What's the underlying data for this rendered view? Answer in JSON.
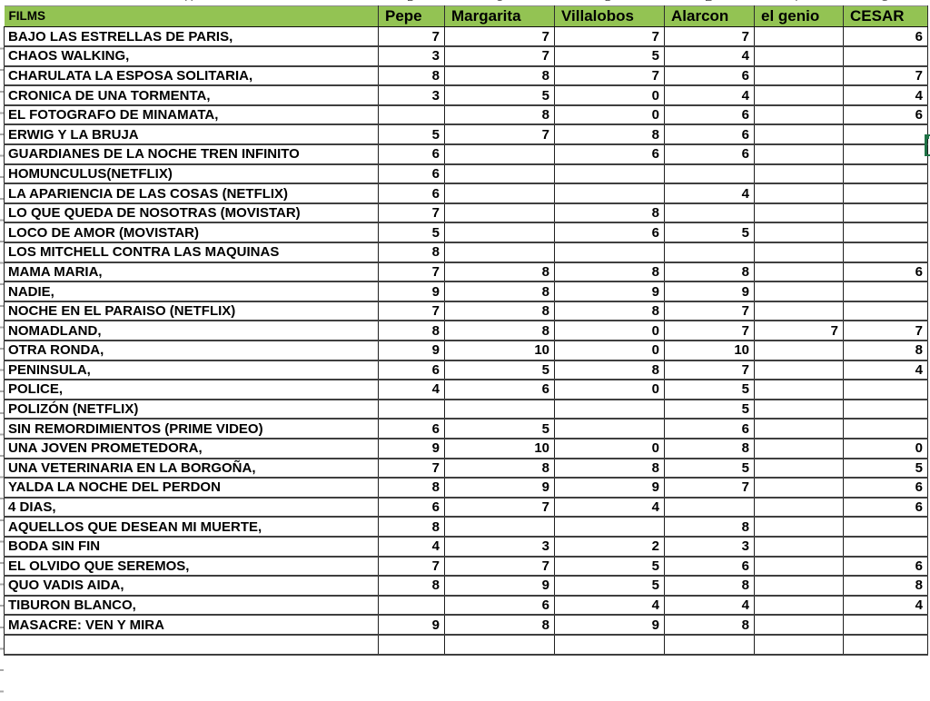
{
  "sheet": {
    "column_letters": [
      "A",
      "B",
      "C",
      "D",
      "E",
      "F",
      "G"
    ],
    "header": {
      "films": "FILMS",
      "raters": [
        "Pepe",
        "Margarita",
        "Villalobos",
        "Alarcon",
        "el genio",
        "CESAR"
      ]
    },
    "rows": [
      {
        "film": "BAJO LAS ESTRELLAS DE PARIS,",
        "scores": [
          "7",
          "7",
          "7",
          "7",
          "",
          "6"
        ]
      },
      {
        "film": "CHAOS WALKING,",
        "scores": [
          "3",
          "7",
          "5",
          "4",
          "",
          ""
        ]
      },
      {
        "film": "CHARULATA LA ESPOSA SOLITARIA,",
        "scores": [
          "8",
          "8",
          "7",
          "6",
          "",
          "7"
        ]
      },
      {
        "film": "CRONICA DE UNA TORMENTA,",
        "scores": [
          "3",
          "5",
          "0",
          "4",
          "",
          "4"
        ]
      },
      {
        "film": "EL FOTOGRAFO DE MINAMATA,",
        "scores": [
          "",
          "8",
          "0",
          "6",
          "",
          "6"
        ]
      },
      {
        "film": "ERWIG Y LA BRUJA",
        "scores": [
          "5",
          "7",
          "8",
          "6",
          "",
          ""
        ]
      },
      {
        "film": "GUARDIANES DE LA NOCHE TREN INFINITO",
        "scores": [
          "6",
          "",
          "6",
          "6",
          "",
          ""
        ]
      },
      {
        "film": "HOMUNCULUS(NETFLIX)",
        "scores": [
          "6",
          "",
          "",
          "",
          "",
          ""
        ]
      },
      {
        "film": "LA APARIENCIA DE LAS COSAS (NETFLIX)",
        "scores": [
          "6",
          "",
          "",
          "4",
          "",
          ""
        ]
      },
      {
        "film": "LO QUE QUEDA DE NOSOTRAS (MOVISTAR)",
        "scores": [
          "7",
          "",
          "8",
          "",
          "",
          ""
        ]
      },
      {
        "film": "LOCO DE AMOR (MOVISTAR)",
        "scores": [
          "5",
          "",
          "6",
          "5",
          "",
          ""
        ]
      },
      {
        "film": "LOS MITCHELL CONTRA LAS MAQUINAS",
        "scores": [
          "8",
          "",
          "",
          "",
          "",
          ""
        ]
      },
      {
        "film": "MAMA MARIA,",
        "scores": [
          "7",
          "8",
          "8",
          "8",
          "",
          "6"
        ]
      },
      {
        "film": "NADIE,",
        "scores": [
          "9",
          "8",
          "9",
          "9",
          "",
          ""
        ]
      },
      {
        "film": "NOCHE EN EL PARAISO (NETFLIX)",
        "scores": [
          "7",
          "8",
          "8",
          "7",
          "",
          ""
        ]
      },
      {
        "film": "NOMADLAND,",
        "scores": [
          "8",
          "8",
          "0",
          "7",
          "7",
          "7"
        ]
      },
      {
        "film": "OTRA RONDA,",
        "scores": [
          "9",
          "10",
          "0",
          "10",
          "",
          "8"
        ]
      },
      {
        "film": "PENINSULA,",
        "scores": [
          "6",
          "5",
          "8",
          "7",
          "",
          "4"
        ]
      },
      {
        "film": "POLICE,",
        "scores": [
          "4",
          "6",
          "0",
          "5",
          "",
          ""
        ]
      },
      {
        "film": "POLIZÓN (NETFLIX)",
        "scores": [
          "",
          "",
          "",
          "5",
          "",
          ""
        ]
      },
      {
        "film": "SIN REMORDIMIENTOS (PRIME VIDEO)",
        "scores": [
          "6",
          "5",
          "",
          "6",
          "",
          ""
        ]
      },
      {
        "film": "UNA JOVEN PROMETEDORA,",
        "scores": [
          "9",
          "10",
          "0",
          "8",
          "",
          "0"
        ]
      },
      {
        "film": "UNA VETERINARIA EN LA BORGOÑA,",
        "scores": [
          "7",
          "8",
          "8",
          "5",
          "",
          "5"
        ]
      },
      {
        "film": "YALDA LA NOCHE DEL PERDON",
        "scores": [
          "8",
          "9",
          "9",
          "7",
          "",
          "6"
        ]
      },
      {
        "film": "4 DIAS,",
        "scores": [
          "6",
          "7",
          "4",
          "",
          "",
          "6"
        ]
      },
      {
        "film": "AQUELLOS QUE DESEAN MI MUERTE,",
        "scores": [
          "8",
          "",
          "",
          "8",
          "",
          ""
        ]
      },
      {
        "film": "BODA SIN FIN",
        "scores": [
          "4",
          "3",
          "2",
          "3",
          "",
          ""
        ]
      },
      {
        "film": "EL OLVIDO QUE SEREMOS,",
        "scores": [
          "7",
          "7",
          "5",
          "6",
          "",
          "6"
        ]
      },
      {
        "film": "QUO VADIS AIDA,",
        "scores": [
          "8",
          "9",
          "5",
          "8",
          "",
          "8"
        ]
      },
      {
        "film": "TIBURON BLANCO,",
        "scores": [
          "",
          "6",
          "4",
          "4",
          "",
          "4"
        ]
      },
      {
        "film": "MASACRE: VEN Y MIRA",
        "scores": [
          "9",
          "8",
          "9",
          "8",
          "",
          ""
        ]
      },
      {
        "film": "",
        "scores": [
          "",
          "",
          "",
          "",
          "",
          ""
        ]
      }
    ],
    "colors": {
      "header_bg": "#93c353",
      "selection_green": "#1e7145",
      "grid_line": "#1f1f1f"
    }
  }
}
